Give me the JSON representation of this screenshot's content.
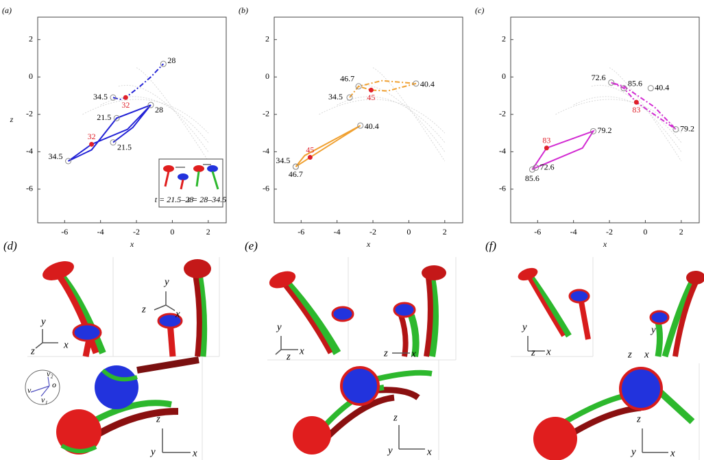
{
  "chart_data": [
    {
      "type": "line",
      "panel": "(a)",
      "xlabel": "x",
      "ylabel": "z",
      "xlim": [
        -7.5,
        3
      ],
      "ylim": [
        -7.8,
        3.2
      ],
      "xticks": [
        -6,
        -4,
        -2,
        0,
        2
      ],
      "yticks": [
        2,
        0,
        -2,
        -4,
        -6
      ],
      "series": [
        {
          "color": "#2323d6",
          "style": "dashdot",
          "x": [
            -3.3,
            -2.9,
            -2.6,
            -1.8,
            -1.2,
            -0.5
          ],
          "values": [
            -1.1,
            -1.2,
            -1.1,
            -0.5,
            0,
            0.7
          ]
        },
        {
          "color": "#2323d6",
          "style": "solid",
          "x": [
            -3.3,
            -2.2,
            -1.2,
            -2.5,
            -4.5,
            -5.8,
            -4.5,
            -3.1,
            -1.2
          ],
          "values": [
            -3.5,
            -2.7,
            -1.5,
            -2.8,
            -3.6,
            -4.5,
            -3.9,
            -2.2,
            -1.5
          ]
        }
      ],
      "annotations": [
        {
          "text": "28",
          "x": -0.5,
          "y": 0.7,
          "color": "#000000"
        },
        {
          "text": "34.5",
          "x": -3.3,
          "y": -1.1,
          "color": "#000000"
        },
        {
          "text": "32",
          "x": -2.6,
          "y": -1.1,
          "color": "#e0202a"
        },
        {
          "text": "21.5",
          "x": -3.1,
          "y": -2.2,
          "color": "#000000"
        },
        {
          "text": "28",
          "x": -1.2,
          "y": -1.5,
          "color": "#000000"
        },
        {
          "text": "32",
          "x": -4.5,
          "y": -3.6,
          "color": "#e0202a"
        },
        {
          "text": "21.5",
          "x": -3.3,
          "y": -3.5,
          "color": "#000000"
        },
        {
          "text": "34.5",
          "x": -5.8,
          "y": -4.5,
          "color": "#000000"
        }
      ],
      "inset": [
        "t = 21.5–28",
        "t = 28–34.5"
      ]
    },
    {
      "type": "line",
      "panel": "(b)",
      "xlabel": "x",
      "xlim": [
        -7.5,
        3
      ],
      "ylim": [
        -7.8,
        3.2
      ],
      "xticks": [
        -6,
        -4,
        -2,
        0,
        2
      ],
      "yticks": [
        2,
        0,
        -2,
        -4,
        -6
      ],
      "series": [
        {
          "color": "#f0a030",
          "style": "solid",
          "x": [
            -6.3,
            -5.5,
            -2.7,
            -5.8,
            -6.3
          ],
          "values": [
            -4.8,
            -4.3,
            -2.6,
            -4.2,
            -4.8
          ]
        },
        {
          "color": "#f0a030",
          "style": "dashdot",
          "x": [
            -3.3,
            -2.8,
            -1.5,
            0.4,
            -1.2,
            -2.1,
            -2.8
          ],
          "values": [
            -1.1,
            -0.5,
            -0.2,
            -0.35,
            -0.75,
            -0.7,
            -0.5
          ]
        }
      ],
      "annotations": [
        {
          "text": "46.7",
          "x": -2.8,
          "y": -0.5,
          "color": "#000000"
        },
        {
          "text": "34.5",
          "x": -3.3,
          "y": -1.1,
          "color": "#000000"
        },
        {
          "text": "45",
          "x": -2.1,
          "y": -0.7,
          "color": "#e0202a"
        },
        {
          "text": "40.4",
          "x": 0.4,
          "y": -0.35,
          "color": "#000000"
        },
        {
          "text": "40.4",
          "x": -2.7,
          "y": -2.6,
          "color": "#000000"
        },
        {
          "text": "45",
          "x": -5.5,
          "y": -4.3,
          "color": "#e0202a"
        },
        {
          "text": "34.5",
          "x": -6.3,
          "y": -4.8,
          "color": "#000000"
        },
        {
          "text": "46.7",
          "x": -6.3,
          "y": -4.8,
          "color": "#000000"
        }
      ]
    },
    {
      "type": "line",
      "panel": "(c)",
      "xlabel": "x",
      "xlim": [
        -7.5,
        3
      ],
      "ylim": [
        -7.8,
        3.2
      ],
      "xticks": [
        -6,
        -4,
        -2,
        0,
        2
      ],
      "yticks": [
        2,
        0,
        -2,
        -4,
        -6
      ],
      "series": [
        {
          "color": "#d22ad2",
          "style": "dashdot",
          "x": [
            -1.9,
            -1.2,
            -0.5,
            1.7,
            0.5,
            -1.2,
            -1.9
          ],
          "values": [
            -0.3,
            -0.6,
            -1.35,
            -2.8,
            -1.6,
            -0.5,
            -0.3
          ]
        },
        {
          "color": "#d22ad2",
          "style": "solid",
          "x": [
            -6.3,
            -5.5,
            -2.9,
            -3.5,
            -6.1,
            -6.3
          ],
          "values": [
            -4.95,
            -3.8,
            -2.9,
            -3.8,
            -4.85,
            -4.95
          ]
        }
      ],
      "annotations": [
        {
          "text": "72.6",
          "x": -1.9,
          "y": -0.3,
          "color": "#000000"
        },
        {
          "text": "85.6",
          "x": -1.2,
          "y": -0.6,
          "color": "#000000"
        },
        {
          "text": "40.4",
          "x": 0.3,
          "y": -0.6,
          "color": "#000000"
        },
        {
          "text": "83",
          "x": -0.5,
          "y": -1.35,
          "color": "#e0202a"
        },
        {
          "text": "79.2",
          "x": 1.7,
          "y": -2.8,
          "color": "#000000"
        },
        {
          "text": "79.2",
          "x": -2.9,
          "y": -2.9,
          "color": "#000000"
        },
        {
          "text": "83",
          "x": -5.5,
          "y": -3.8,
          "color": "#e0202a"
        },
        {
          "text": "72.6",
          "x": -6.1,
          "y": -4.85,
          "color": "#000000"
        },
        {
          "text": "85.6",
          "x": -6.3,
          "y": -4.95,
          "color": "#000000"
        }
      ]
    }
  ],
  "renders": [
    {
      "label": "(d)",
      "axis_labels": [
        "y",
        "x",
        "z",
        "y",
        "z",
        "x",
        "z",
        "y",
        "x",
        "v₂",
        "o",
        "v",
        "v₁"
      ]
    },
    {
      "label": "(e)",
      "axis_labels": [
        "y",
        "z",
        "x",
        "z",
        "x",
        "z",
        "y",
        "x"
      ]
    },
    {
      "label": "(f)",
      "axis_labels": [
        "y",
        "z",
        "x",
        "y",
        "z",
        "x",
        "z",
        "y",
        "x"
      ]
    }
  ]
}
